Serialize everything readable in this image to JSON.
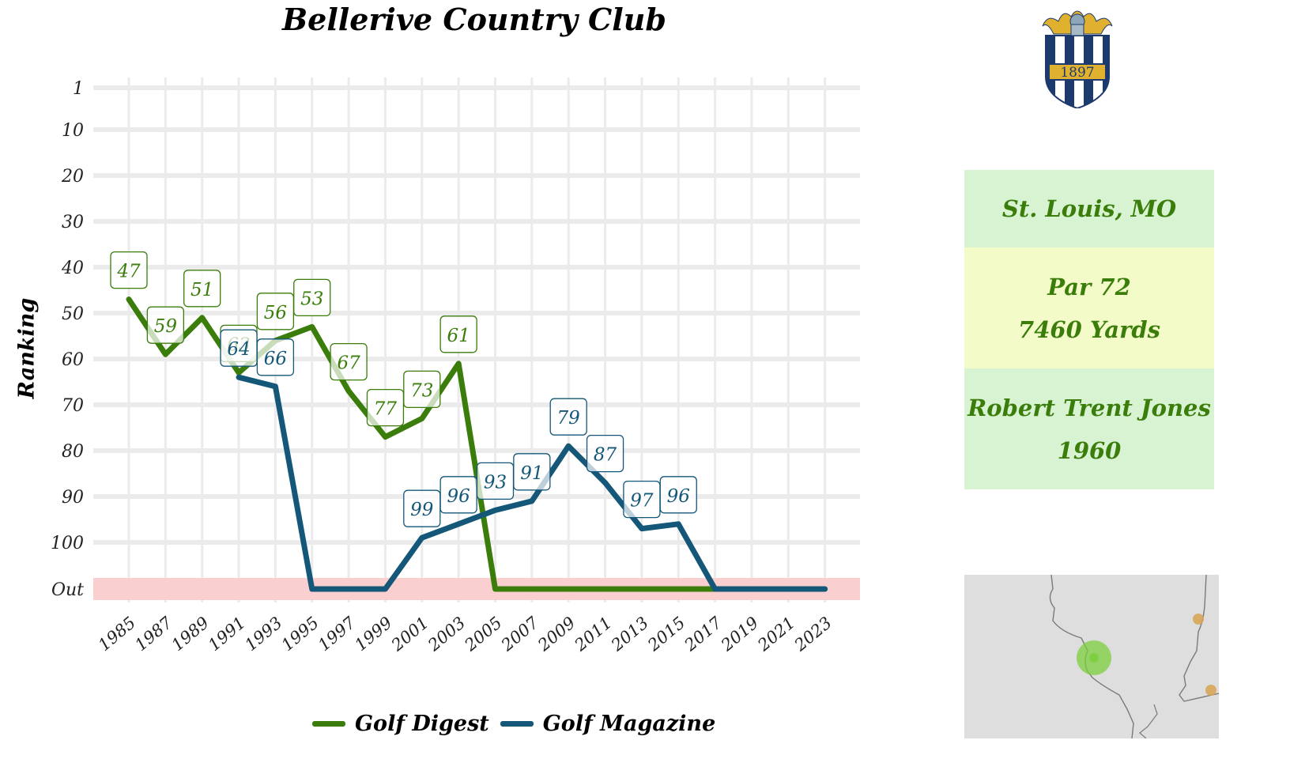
{
  "title": "Bellerive Country Club",
  "chart_data": {
    "type": "line",
    "title": "Bellerive Country Club",
    "ylabel": "Ranking",
    "xlabel": "",
    "x_ticks": [
      "1985",
      "1987",
      "1989",
      "1991",
      "1993",
      "1995",
      "1997",
      "1999",
      "2001",
      "2003",
      "2005",
      "2007",
      "2009",
      "2011",
      "2013",
      "2015",
      "2017",
      "2019",
      "2021",
      "2023"
    ],
    "y_ticks": [
      "1",
      "10",
      "20",
      "30",
      "40",
      "50",
      "60",
      "70",
      "80",
      "90",
      "100",
      "Out"
    ],
    "y_reversed": true,
    "out_band_color": "#f9cfcf",
    "legend_position": "bottom",
    "series": [
      {
        "name": "Golf Digest",
        "color": "#3b7d0b",
        "points": [
          {
            "x": 1985,
            "y": 47,
            "label": "47"
          },
          {
            "x": 1987,
            "y": 59,
            "label": "59"
          },
          {
            "x": 1989,
            "y": 51,
            "label": "51"
          },
          {
            "x": 1991,
            "y": 63,
            "label": "63"
          },
          {
            "x": 1993,
            "y": 56,
            "label": "56"
          },
          {
            "x": 1995,
            "y": 53,
            "label": "53"
          },
          {
            "x": 1997,
            "y": 67,
            "label": "67"
          },
          {
            "x": 1999,
            "y": 77,
            "label": "77"
          },
          {
            "x": 2001,
            "y": 73,
            "label": "73"
          },
          {
            "x": 2003,
            "y": 61,
            "label": "61"
          },
          {
            "x": 2005,
            "y": "Out"
          },
          {
            "x": 2007,
            "y": "Out"
          },
          {
            "x": 2009,
            "y": "Out"
          },
          {
            "x": 2011,
            "y": "Out"
          },
          {
            "x": 2013,
            "y": "Out"
          },
          {
            "x": 2015,
            "y": "Out"
          },
          {
            "x": 2017,
            "y": "Out"
          }
        ]
      },
      {
        "name": "Golf Magazine",
        "color": "#155778",
        "points": [
          {
            "x": 1991,
            "y": 64,
            "label": "64"
          },
          {
            "x": 1993,
            "y": 66,
            "label": "66"
          },
          {
            "x": 1995,
            "y": "Out"
          },
          {
            "x": 1997,
            "y": "Out"
          },
          {
            "x": 1999,
            "y": "Out"
          },
          {
            "x": 2001,
            "y": 99,
            "label": "99"
          },
          {
            "x": 2003,
            "y": 96,
            "label": "96"
          },
          {
            "x": 2005,
            "y": 93,
            "label": "93"
          },
          {
            "x": 2007,
            "y": 91,
            "label": "91"
          },
          {
            "x": 2009,
            "y": 79,
            "label": "79"
          },
          {
            "x": 2011,
            "y": 87,
            "label": "87"
          },
          {
            "x": 2013,
            "y": 97,
            "label": "97"
          },
          {
            "x": 2015,
            "y": 96,
            "label": "96"
          },
          {
            "x": 2017,
            "y": "Out"
          },
          {
            "x": 2019,
            "y": "Out"
          },
          {
            "x": 2021,
            "y": "Out"
          },
          {
            "x": 2023,
            "y": "Out"
          }
        ]
      }
    ]
  },
  "info_panel": {
    "location": "St. Louis, MO",
    "par": "Par 72",
    "yards": "7460 Yards",
    "architect": "Robert Trent Jones",
    "year_built": "1960"
  },
  "badge": {
    "year": "1897"
  },
  "map": {
    "background": "#dedede",
    "highlight_color": "#7ccf3d",
    "other_color": "#d8a350"
  }
}
